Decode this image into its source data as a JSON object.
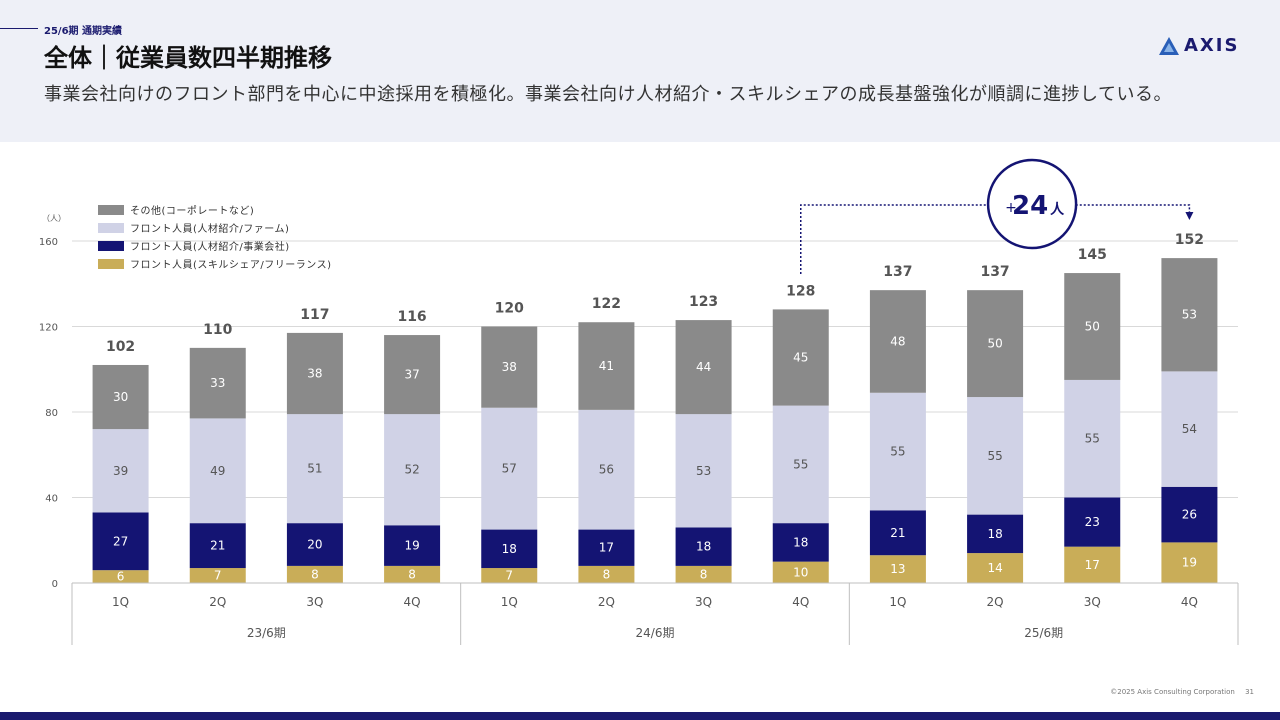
{
  "header": {
    "section_tag": "25/6期 通期実績",
    "title": "全体｜従業員数四半期推移",
    "subtitle": "事業会社向けのフロント部門を中心に中途採用を積極化。事業会社向け人材紹介・スキルシェアの成長基盤強化が順調に進捗している。",
    "logo_text": "AXIS"
  },
  "footer": {
    "copyright": "©2025 Axis Consulting Corporation",
    "page_number": "31"
  },
  "colors": {
    "brand_navy": "#1a1a6e",
    "other": "#8a8a8a",
    "front_firm": "#d0d2e6",
    "front_business": "#141473",
    "front_skill": "#c9ad58"
  },
  "chart_data": {
    "type": "bar",
    "stacked": true,
    "unit_label": "（人）",
    "ylim": [
      0,
      160
    ],
    "yticks": [
      0,
      40,
      80,
      120,
      160
    ],
    "grid": true,
    "legend_position": "top-left",
    "categories": [
      "1Q",
      "2Q",
      "3Q",
      "4Q",
      "1Q",
      "2Q",
      "3Q",
      "4Q",
      "1Q",
      "2Q",
      "3Q",
      "4Q"
    ],
    "groups": [
      {
        "label": "23/6期",
        "count": 4
      },
      {
        "label": "24/6期",
        "count": 4
      },
      {
        "label": "25/6期",
        "count": 4
      }
    ],
    "series": [
      {
        "name": "フロント人員(スキルシェア/フリーランス)",
        "color": "#c9ad58",
        "label_color": "#ffffff",
        "values": [
          6,
          7,
          8,
          8,
          7,
          8,
          8,
          10,
          13,
          14,
          17,
          19
        ]
      },
      {
        "name": "フロント人員(人材紹介/事業会社)",
        "color": "#141473",
        "label_color": "#ffffff",
        "values": [
          27,
          21,
          20,
          19,
          18,
          17,
          18,
          18,
          21,
          18,
          23,
          26
        ]
      },
      {
        "name": "フロント人員(人材紹介/ファーム)",
        "color": "#d0d2e6",
        "label_color": "#555555",
        "values": [
          39,
          49,
          51,
          52,
          57,
          56,
          53,
          55,
          55,
          55,
          55,
          54
        ]
      },
      {
        "name": "その他(コーポレートなど)",
        "color": "#8a8a8a",
        "label_color": "#ffffff",
        "values": [
          30,
          33,
          38,
          37,
          38,
          41,
          44,
          45,
          48,
          50,
          50,
          53
        ]
      }
    ],
    "totals": [
      102,
      110,
      117,
      116,
      120,
      122,
      123,
      128,
      137,
      137,
      145,
      152
    ],
    "annotation": {
      "prefix": "+",
      "number": "24",
      "suffix": "人",
      "from_index": 7,
      "to_index": 11
    }
  }
}
